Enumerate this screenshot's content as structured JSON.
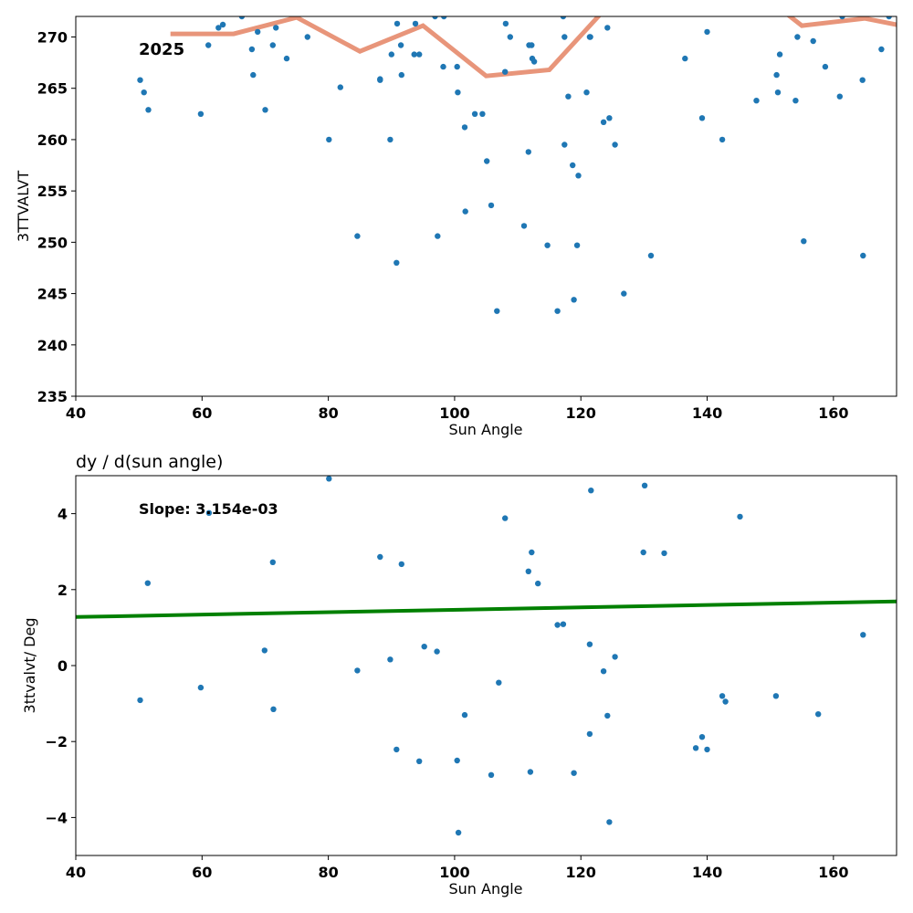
{
  "chart_data": [
    {
      "type": "scatter",
      "title": "",
      "xlabel": "Sun Angle",
      "ylabel": "3TTVALVT",
      "xlim": [
        40,
        170
      ],
      "ylim": [
        235,
        272
      ],
      "xticks": [
        "40",
        "60",
        "80",
        "100",
        "120",
        "140",
        "160"
      ],
      "yticks": [
        "235",
        "240",
        "245",
        "250",
        "255",
        "260",
        "265",
        "270"
      ],
      "annotation": "2025",
      "colors": {
        "points": "#1f77b4",
        "line": "#e8957a"
      },
      "series": [
        {
          "type": "scatter",
          "points": [
            [
              50.2,
              265.8
            ],
            [
              50.8,
              264.6
            ],
            [
              51.5,
              262.9
            ],
            [
              59.8,
              262.5
            ],
            [
              61.0,
              269.2
            ],
            [
              62.6,
              270.9
            ],
            [
              63.3,
              271.2
            ],
            [
              66.3,
              272.0
            ],
            [
              67.9,
              268.8
            ],
            [
              68.1,
              266.3
            ],
            [
              68.8,
              270.5
            ],
            [
              70.0,
              262.9
            ],
            [
              71.2,
              269.2
            ],
            [
              71.7,
              270.9
            ],
            [
              73.4,
              267.9
            ],
            [
              76.7,
              270.0
            ],
            [
              80.1,
              260.0
            ],
            [
              81.9,
              265.1
            ],
            [
              84.6,
              250.6
            ],
            [
              88.2,
              265.8
            ],
            [
              88.2,
              265.9
            ],
            [
              89.8,
              260.0
            ],
            [
              90.0,
              268.3
            ],
            [
              90.8,
              248.0
            ],
            [
              90.9,
              271.3
            ],
            [
              91.5,
              269.2
            ],
            [
              91.6,
              266.3
            ],
            [
              93.6,
              268.3
            ],
            [
              93.8,
              271.3
            ],
            [
              94.4,
              268.3
            ],
            [
              96.9,
              272.0
            ],
            [
              97.3,
              250.6
            ],
            [
              98.2,
              267.1
            ],
            [
              98.3,
              272.0
            ],
            [
              100.4,
              267.1
            ],
            [
              100.5,
              264.6
            ],
            [
              101.6,
              261.2
            ],
            [
              101.7,
              253.0
            ],
            [
              103.2,
              262.5
            ],
            [
              104.4,
              262.5
            ],
            [
              105.1,
              257.9
            ],
            [
              105.8,
              253.6
            ],
            [
              106.7,
              243.3
            ],
            [
              108.0,
              266.6
            ],
            [
              108.1,
              271.3
            ],
            [
              108.8,
              270.0
            ],
            [
              111.0,
              251.6
            ],
            [
              111.7,
              258.8
            ],
            [
              111.8,
              269.2
            ],
            [
              112.2,
              269.2
            ],
            [
              112.3,
              267.9
            ],
            [
              112.6,
              267.6
            ],
            [
              114.7,
              249.7
            ],
            [
              116.3,
              243.3
            ],
            [
              117.2,
              272.0
            ],
            [
              117.4,
              270.0
            ],
            [
              117.4,
              259.5
            ],
            [
              118.0,
              264.2
            ],
            [
              118.7,
              257.5
            ],
            [
              118.9,
              244.4
            ],
            [
              119.4,
              249.7
            ],
            [
              119.6,
              256.5
            ],
            [
              120.9,
              264.6
            ],
            [
              121.4,
              270.0
            ],
            [
              121.5,
              270.0
            ],
            [
              123.6,
              261.7
            ],
            [
              124.2,
              270.9
            ],
            [
              124.5,
              262.1
            ],
            [
              125.4,
              259.5
            ],
            [
              126.8,
              245.0
            ],
            [
              131.1,
              248.7
            ],
            [
              136.5,
              267.9
            ],
            [
              139.2,
              262.1
            ],
            [
              140.0,
              270.5
            ],
            [
              142.4,
              260.0
            ],
            [
              147.8,
              263.8
            ],
            [
              151.0,
              266.3
            ],
            [
              151.2,
              264.6
            ],
            [
              151.5,
              268.3
            ],
            [
              154.0,
              263.8
            ],
            [
              154.3,
              270.0
            ],
            [
              155.3,
              250.1
            ],
            [
              156.8,
              269.6
            ],
            [
              158.7,
              267.1
            ],
            [
              161.0,
              264.2
            ],
            [
              161.4,
              272.0
            ],
            [
              164.6,
              265.8
            ],
            [
              164.7,
              248.7
            ],
            [
              167.6,
              268.8
            ],
            [
              168.8,
              272.0
            ]
          ]
        },
        {
          "type": "line",
          "points": [
            [
              55,
              270.3
            ],
            [
              65,
              270.3
            ],
            [
              75,
              271.9
            ],
            [
              85,
              268.6
            ],
            [
              95,
              271.1
            ],
            [
              105,
              266.2
            ],
            [
              115,
              266.8
            ],
            [
              125,
              273.5
            ],
            [
              150,
              273.5
            ],
            [
              155,
              271.1
            ],
            [
              165,
              271.8
            ],
            [
              170,
              271.2
            ]
          ]
        }
      ]
    },
    {
      "type": "scatter",
      "title": "dy / d(sun angle)",
      "xlabel": "Sun Angle",
      "ylabel": "3ttvalvt/ Deg",
      "xlim": [
        40,
        170
      ],
      "ylim": [
        -5,
        5
      ],
      "xticks": [
        "40",
        "60",
        "80",
        "100",
        "120",
        "140",
        "160"
      ],
      "yticks": [
        "−4",
        "−2",
        "0",
        "2",
        "4"
      ],
      "annotation": "Slope: 3.154e-03",
      "colors": {
        "points": "#1f77b4",
        "line": "#008000"
      },
      "series": [
        {
          "type": "scatter",
          "points": [
            [
              50.2,
              -0.91
            ],
            [
              51.4,
              2.17
            ],
            [
              59.8,
              -0.58
            ],
            [
              61.1,
              4.02
            ],
            [
              69.9,
              0.4
            ],
            [
              71.2,
              2.72
            ],
            [
              71.3,
              -1.15
            ],
            [
              80.1,
              4.92
            ],
            [
              84.6,
              -0.13
            ],
            [
              88.2,
              2.86
            ],
            [
              89.8,
              0.16
            ],
            [
              90.8,
              -2.21
            ],
            [
              91.6,
              2.67
            ],
            [
              94.4,
              -2.52
            ],
            [
              95.2,
              0.5
            ],
            [
              97.2,
              0.37
            ],
            [
              100.4,
              -2.5
            ],
            [
              100.6,
              -4.4
            ],
            [
              101.6,
              -1.3
            ],
            [
              105.8,
              -2.88
            ],
            [
              107.0,
              -0.45
            ],
            [
              108.0,
              3.88
            ],
            [
              111.7,
              2.48
            ],
            [
              112.0,
              -2.8
            ],
            [
              112.2,
              2.98
            ],
            [
              113.2,
              2.16
            ],
            [
              116.3,
              1.07
            ],
            [
              117.2,
              1.09
            ],
            [
              118.9,
              -2.83
            ],
            [
              121.4,
              -1.8
            ],
            [
              121.4,
              0.56
            ],
            [
              121.6,
              4.61
            ],
            [
              123.6,
              -0.15
            ],
            [
              124.2,
              -1.32
            ],
            [
              124.5,
              -4.12
            ],
            [
              125.4,
              0.23
            ],
            [
              129.9,
              2.98
            ],
            [
              130.1,
              4.74
            ],
            [
              133.2,
              2.96
            ],
            [
              138.2,
              -2.17
            ],
            [
              139.2,
              -1.88
            ],
            [
              140.0,
              -2.21
            ],
            [
              142.4,
              -0.8
            ],
            [
              142.9,
              -0.95
            ],
            [
              145.2,
              3.92
            ],
            [
              150.9,
              -0.8
            ],
            [
              157.6,
              -1.28
            ],
            [
              164.7,
              0.81
            ]
          ]
        },
        {
          "type": "line",
          "points": [
            [
              40,
              1.28
            ],
            [
              170,
              1.69
            ]
          ]
        }
      ]
    }
  ]
}
